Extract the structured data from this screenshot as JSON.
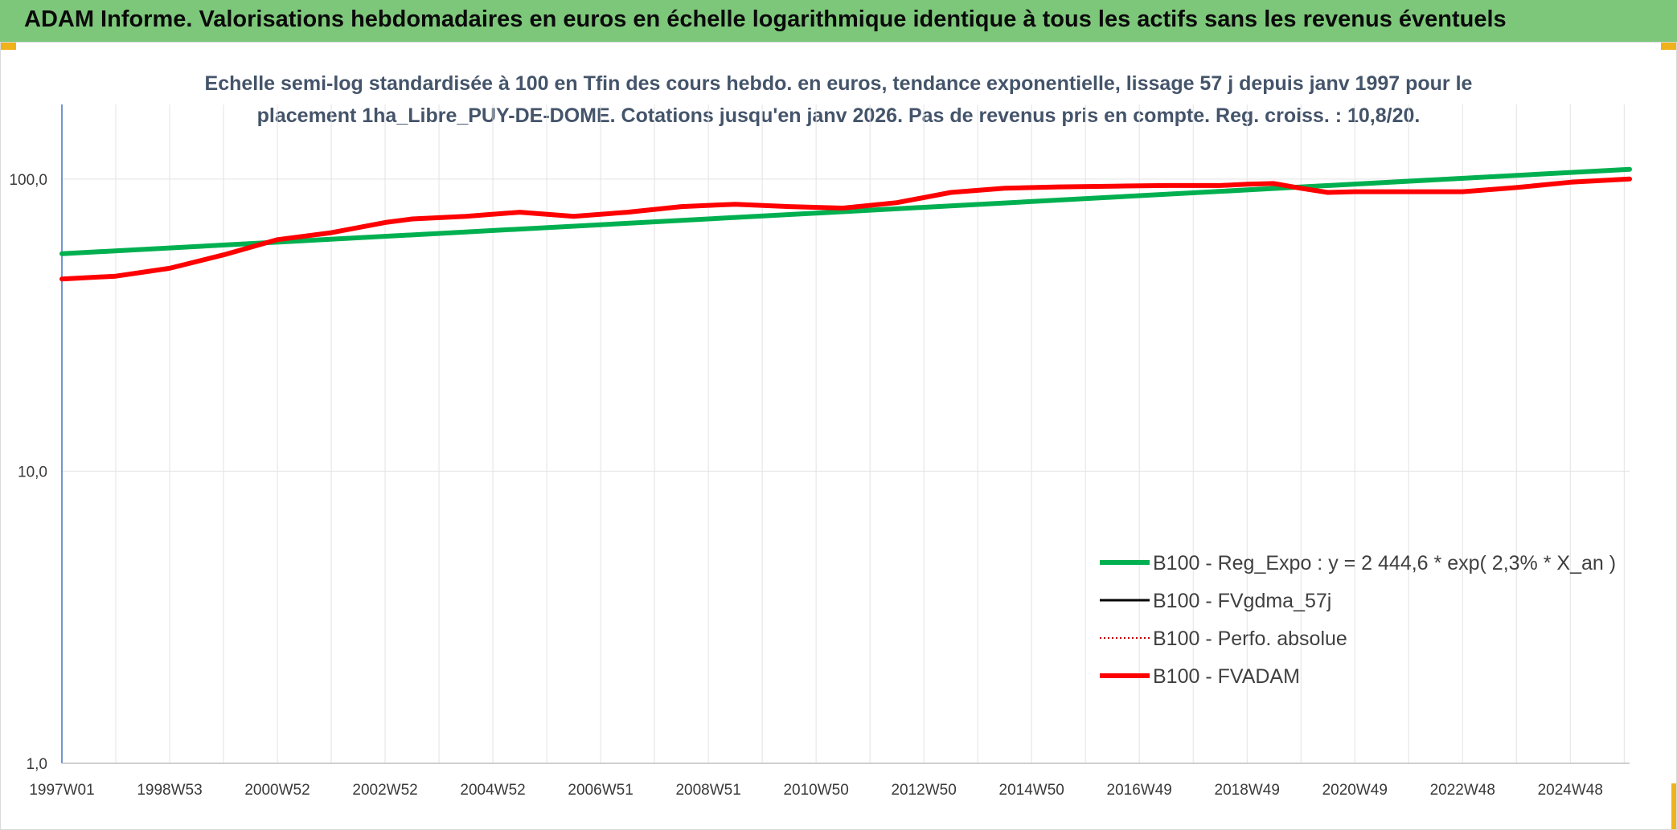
{
  "header": {
    "title": "ADAM Informe. Valorisations hebdomadaires en euros en échelle logarithmique identique à tous les actifs sans les revenus éventuels"
  },
  "chart_data": {
    "type": "line",
    "title": "Echelle semi-log standardisée à 100 en Tfin des cours hebdo. en euros, tendance exponentielle, lissage 57 j depuis janv 1997 pour le placement 1ha_Libre_PUY-DE-DOME. Cotations jusqu'en janv 2026. Pas de revenus pris en compte. Reg. croiss. : 10,8/20.",
    "title_lines": [
      "Echelle semi-log standardisée à 100 en Tfin des cours hebdo. en euros, tendance exponentielle, lissage 57 j depuis janv 1997 pour le",
      "placement 1ha_Libre_PUY-DE-DOME. Cotations jusqu'en janv 2026. Pas de revenus pris en compte. Reg. croiss. : 10,8/20."
    ],
    "y_scale": "log",
    "ylim": [
      1,
      180
    ],
    "y_ticks": [
      {
        "value": 1,
        "label": "1,0"
      },
      {
        "value": 10,
        "label": "10,0"
      },
      {
        "value": 100,
        "label": "100,0"
      }
    ],
    "xlim": [
      1997.0,
      2026.1
    ],
    "x_ticks": [
      {
        "value": 1997.0,
        "label": "1997W01"
      },
      {
        "value": 1999.0,
        "label": "1998W53"
      },
      {
        "value": 2001.0,
        "label": "2000W52"
      },
      {
        "value": 2003.0,
        "label": "2002W52"
      },
      {
        "value": 2005.0,
        "label": "2004W52"
      },
      {
        "value": 2007.0,
        "label": "2006W51"
      },
      {
        "value": 2009.0,
        "label": "2008W51"
      },
      {
        "value": 2011.0,
        "label": "2010W50"
      },
      {
        "value": 2013.0,
        "label": "2012W50"
      },
      {
        "value": 2015.0,
        "label": "2014W50"
      },
      {
        "value": 2017.0,
        "label": "2016W49"
      },
      {
        "value": 2019.0,
        "label": "2018W49"
      },
      {
        "value": 2021.0,
        "label": "2020W49"
      },
      {
        "value": 2023.0,
        "label": "2022W48"
      },
      {
        "value": 2025.0,
        "label": "2024W48"
      }
    ],
    "grid": true,
    "legend_position": "bottom-right",
    "series": [
      {
        "name": "B100 - Reg_Expo : y = 2 444,6 * exp( 2,3% *  X_an )",
        "color": "#00b050",
        "style": "solid-thick",
        "x": [
          1997.0,
          2026.1
        ],
        "y": [
          55.5,
          108
        ]
      },
      {
        "name": "B100 - FVgdma_57j",
        "color": "#000000",
        "style": "solid",
        "x": [],
        "y": []
      },
      {
        "name": "B100 - Perfo. absolue",
        "color": "#c00000",
        "style": "dotted",
        "x": [],
        "y": []
      },
      {
        "name": "B100 - FVADAM",
        "color": "#ff0000",
        "style": "solid-thick",
        "x": [
          1997.0,
          1998.0,
          1999.0,
          2000.0,
          2001.0,
          2002.0,
          2003.0,
          2003.5,
          2004.5,
          2005.5,
          2006.5,
          2007.5,
          2008.5,
          2009.5,
          2010.5,
          2011.5,
          2012.5,
          2013.5,
          2014.5,
          2015.5,
          2016.5,
          2017.5,
          2018.5,
          2019.0,
          2019.5,
          2020.0,
          2020.5,
          2021.0,
          2022.0,
          2023.0,
          2024.0,
          2025.0,
          2026.1
        ],
        "y": [
          45.5,
          46.5,
          49.5,
          55,
          62,
          65.5,
          71,
          73,
          74.5,
          77,
          74.5,
          77,
          80.5,
          82,
          80.5,
          79.5,
          83,
          90,
          93,
          94,
          94.5,
          95,
          95,
          96,
          96.5,
          93,
          90,
          90.5,
          90.5,
          90.5,
          93.5,
          97.5,
          100
        ]
      }
    ]
  }
}
